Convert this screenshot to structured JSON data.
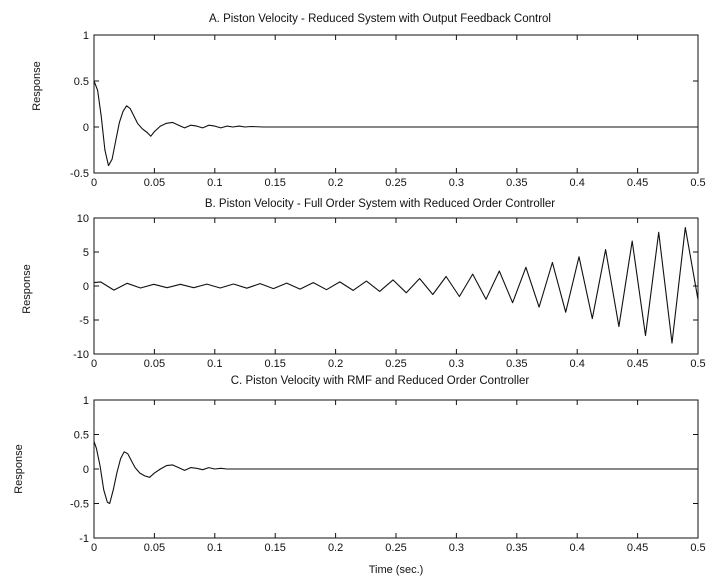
{
  "chart_data": [
    {
      "type": "line",
      "title": "A. Piston Velocity - Reduced System with Output Feedback Control",
      "xlabel": "",
      "ylabel": "Response",
      "xlim": [
        0,
        0.5
      ],
      "ylim": [
        -0.5,
        1
      ],
      "xticks": [
        0,
        0.05,
        0.1,
        0.15,
        0.2,
        0.25,
        0.3,
        0.35,
        0.4,
        0.45,
        0.5
      ],
      "xtick_labels": [
        "0",
        "0.05",
        "0.1",
        "0.15",
        "0.2",
        "0.25",
        "0.3",
        "0.35",
        "0.4",
        "0.45",
        "0.5"
      ],
      "yticks": [
        -0.5,
        0,
        0.5,
        1
      ],
      "ytick_labels": [
        "-0.5",
        "0",
        "0.5",
        "1"
      ],
      "grid": false,
      "series": [
        {
          "x": [
            0,
            0.003,
            0.006,
            0.009,
            0.012,
            0.015,
            0.018,
            0.021,
            0.024,
            0.027,
            0.03,
            0.033,
            0.036,
            0.04,
            0.044,
            0.047,
            0.05,
            0.055,
            0.06,
            0.065,
            0.07,
            0.075,
            0.08,
            0.085,
            0.09,
            0.095,
            0.1,
            0.105,
            0.11,
            0.115,
            0.12,
            0.125,
            0.13,
            0.14,
            0.15,
            0.2,
            0.3,
            0.4,
            0.5
          ],
          "y": [
            0.5,
            0.4,
            0.12,
            -0.25,
            -0.42,
            -0.35,
            -0.15,
            0.05,
            0.17,
            0.23,
            0.2,
            0.12,
            0.04,
            -0.02,
            -0.06,
            -0.1,
            -0.05,
            0.01,
            0.04,
            0.05,
            0.02,
            -0.01,
            0.02,
            0.01,
            -0.01,
            0.02,
            0.01,
            -0.01,
            0.01,
            0,
            0.01,
            0,
            0.005,
            0,
            0,
            0,
            0,
            0,
            0
          ]
        }
      ]
    },
    {
      "type": "line",
      "title": "B. Piston Velocity - Full Order System with Reduced Order Controller",
      "xlabel": "",
      "ylabel": "Response",
      "xlim": [
        0,
        0.5
      ],
      "ylim": [
        -10,
        10
      ],
      "xticks": [
        0,
        0.05,
        0.1,
        0.15,
        0.2,
        0.25,
        0.3,
        0.35,
        0.4,
        0.45,
        0.5
      ],
      "xtick_labels": [
        "0",
        "0.05",
        "0.1",
        "0.15",
        "0.2",
        "0.25",
        "0.3",
        "0.35",
        "0.4",
        "0.45",
        "0.5"
      ],
      "yticks": [
        -10,
        -5,
        0,
        5,
        10
      ],
      "ytick_labels": [
        "-10",
        "-5",
        "0",
        "5",
        "10"
      ],
      "grid": false,
      "series": [
        {
          "x": [
            0,
            0.0055,
            0.0165,
            0.0275,
            0.0385,
            0.0495,
            0.0605,
            0.0715,
            0.0825,
            0.0935,
            0.1045,
            0.1155,
            0.1265,
            0.1375,
            0.1485,
            0.1595,
            0.1705,
            0.1815,
            0.1925,
            0.2035,
            0.2145,
            0.2255,
            0.2365,
            0.2475,
            0.2585,
            0.2695,
            0.2805,
            0.2915,
            0.3025,
            0.3135,
            0.3245,
            0.3355,
            0.3465,
            0.3575,
            0.3685,
            0.3795,
            0.3905,
            0.4015,
            0.4125,
            0.4235,
            0.4345,
            0.4455,
            0.4565,
            0.4675,
            0.4785,
            0.4895,
            0.5
          ],
          "y": [
            0.5,
            0.6,
            -0.6,
            0.4,
            -0.3,
            0.25,
            -0.25,
            0.25,
            -0.25,
            0.28,
            -0.3,
            0.3,
            -0.32,
            0.35,
            -0.38,
            0.42,
            -0.45,
            0.5,
            -0.55,
            0.6,
            -0.65,
            0.72,
            -0.8,
            0.9,
            -1,
            1.1,
            -1.25,
            1.4,
            -1.55,
            1.75,
            -1.95,
            2.2,
            -2.45,
            2.75,
            -3.1,
            3.45,
            -3.85,
            4.3,
            -4.8,
            5.35,
            -5.95,
            6.6,
            -7.3,
            7.9,
            -8.4,
            8.6,
            -2
          ]
        }
      ]
    },
    {
      "type": "line",
      "title": "C. Piston Velocity with RMF and Reduced Order Controller",
      "xlabel": "Time (sec.)",
      "ylabel": "Response",
      "xlim": [
        0,
        0.5
      ],
      "ylim": [
        -1,
        1
      ],
      "xticks": [
        0,
        0.05,
        0.1,
        0.15,
        0.2,
        0.25,
        0.3,
        0.35,
        0.4,
        0.45,
        0.5
      ],
      "xtick_labels": [
        "0",
        "0.05",
        "0.1",
        "0.15",
        "0.2",
        "0.25",
        "0.3",
        "0.35",
        "0.4",
        "0.45",
        "0.5"
      ],
      "yticks": [
        -1,
        -0.5,
        0,
        0.5,
        1
      ],
      "ytick_labels": [
        "-1",
        "-0.5",
        "0",
        "0.5",
        "1"
      ],
      "grid": false,
      "series": [
        {
          "x": [
            0,
            0.002,
            0.005,
            0.008,
            0.011,
            0.013,
            0.016,
            0.019,
            0.022,
            0.025,
            0.028,
            0.031,
            0.034,
            0.038,
            0.042,
            0.046,
            0.05,
            0.055,
            0.06,
            0.065,
            0.07,
            0.075,
            0.08,
            0.085,
            0.09,
            0.095,
            0.1,
            0.105,
            0.11,
            0.12,
            0.2,
            0.3,
            0.4,
            0.5
          ],
          "y": [
            0.4,
            0.3,
            0.05,
            -0.3,
            -0.48,
            -0.5,
            -0.3,
            -0.05,
            0.15,
            0.25,
            0.22,
            0.12,
            0.02,
            -0.06,
            -0.1,
            -0.12,
            -0.06,
            0,
            0.05,
            0.06,
            0.02,
            -0.02,
            0.02,
            0.01,
            -0.01,
            0.02,
            0,
            0.01,
            0,
            0,
            0,
            0,
            0,
            0
          ]
        }
      ]
    }
  ]
}
